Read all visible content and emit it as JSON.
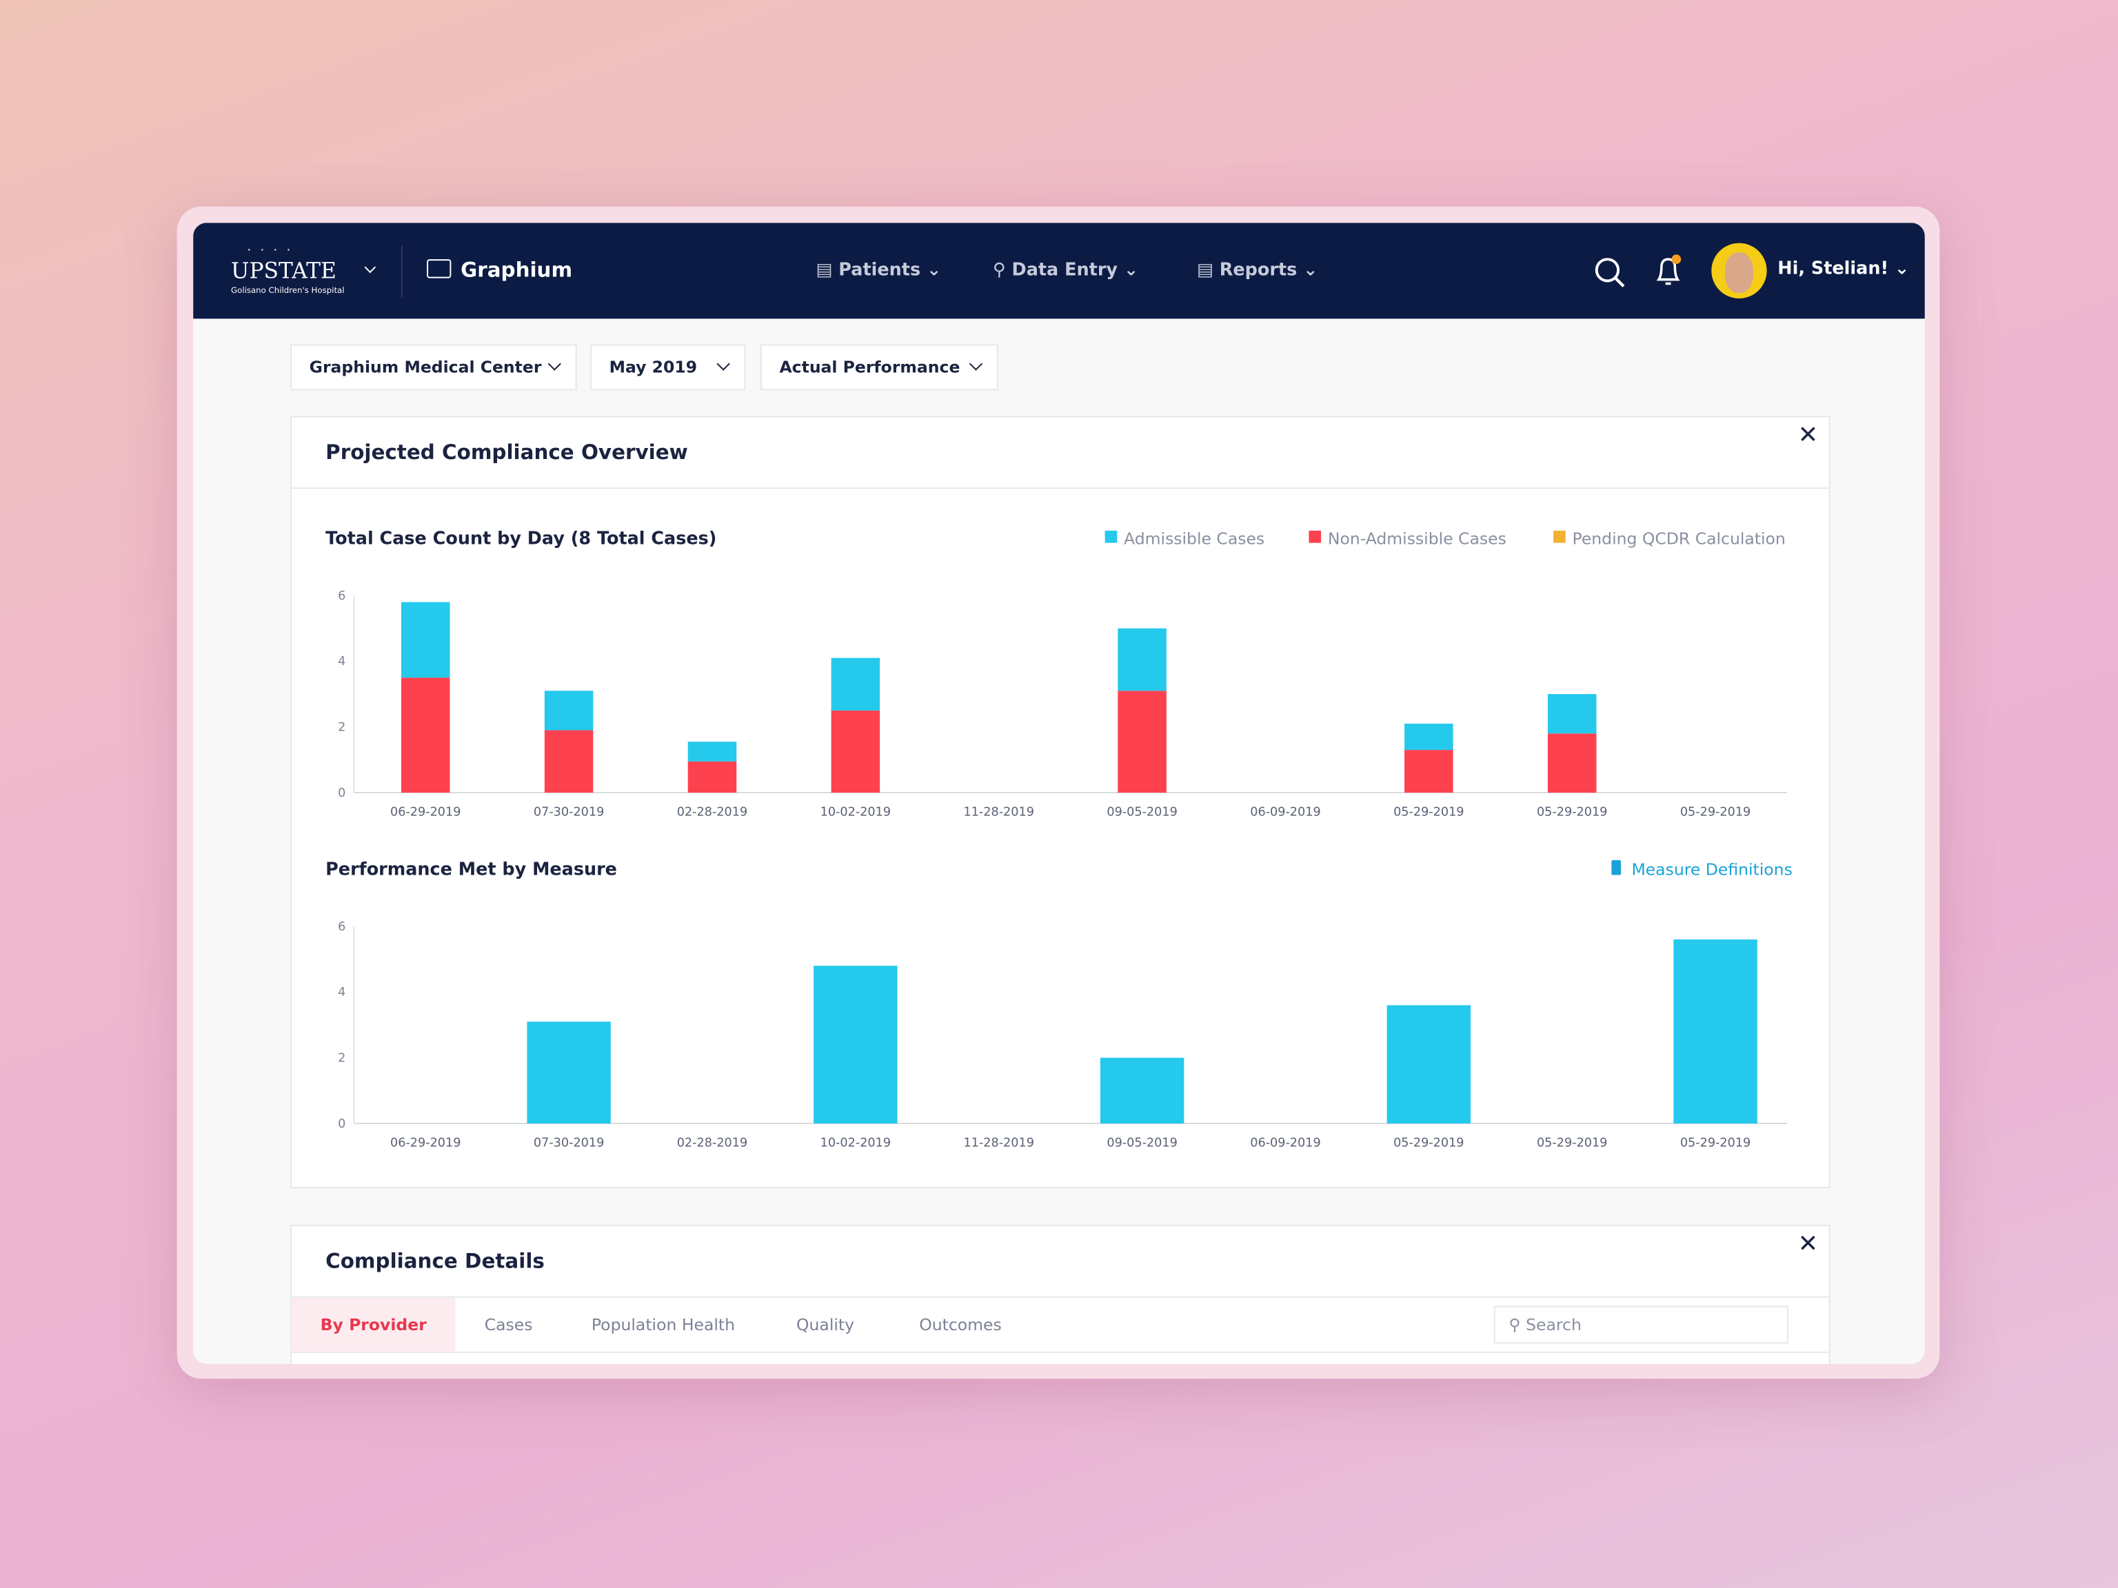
{
  "nav": {
    "brand": "UPSTATE",
    "brand_sub": "Golisano Children's Hospital",
    "app": "Graphium",
    "menu": [
      "Patients",
      "Data Entry",
      "Reports"
    ],
    "greeting": "Hi, Stelian!"
  },
  "filters": [
    "Graphium Medical Center",
    "May 2019",
    "Actual Performance"
  ],
  "panel": {
    "title": "Projected Compliance Overview"
  },
  "chart_data": [
    {
      "type": "stacked_bar",
      "title": "Total Case Count by Day (8 Total Cases)",
      "categories": [
        "06-29-2019",
        "07-30-2019",
        "02-28-2019",
        "10-02-2019",
        "11-28-2019",
        "09-05-2019",
        "06-09-2019",
        "05-29-2019",
        "05-29-2019",
        "05-29-2019"
      ],
      "series": [
        {
          "name": "Admissible Cases",
          "color": "#25c9ec",
          "values": [
            2.3,
            1.2,
            0.6,
            1.6,
            0,
            1.9,
            0,
            0.8,
            1.2,
            0
          ]
        },
        {
          "name": "Non-Admissible Cases",
          "color": "#fd414f",
          "values": [
            3.5,
            1.9,
            0.95,
            2.5,
            0,
            3.1,
            0,
            1.3,
            1.8,
            0
          ]
        },
        {
          "name": "Pending QCDR Calculation",
          "color": "#f4b030",
          "values": [
            0,
            0,
            0,
            0,
            0,
            0,
            0,
            0,
            0,
            0
          ]
        }
      ],
      "ylim": [
        0,
        6
      ],
      "yticks": [
        0,
        2,
        4,
        6
      ],
      "legend": "top-right"
    },
    {
      "type": "bar",
      "title": "Performance Met by Measure",
      "link": "Measure Definitions",
      "categories": [
        "06-29-2019",
        "07-30-2019",
        "02-28-2019",
        "10-02-2019",
        "11-28-2019",
        "09-05-2019",
        "06-09-2019",
        "05-29-2019",
        "05-29-2019",
        "05-29-2019"
      ],
      "values": [
        0,
        3.1,
        0,
        4.8,
        0,
        2.0,
        0,
        3.6,
        0,
        5.6
      ],
      "color": "#25c9ec",
      "ylim": [
        0,
        6
      ],
      "yticks": [
        0,
        2,
        4,
        6
      ]
    }
  ],
  "details": {
    "title": "Compliance Details",
    "tabs": [
      "By Provider",
      "Cases",
      "Population Health",
      "Quality",
      "Outcomes"
    ],
    "active_tab": 0,
    "search_placeholder": "Search"
  }
}
